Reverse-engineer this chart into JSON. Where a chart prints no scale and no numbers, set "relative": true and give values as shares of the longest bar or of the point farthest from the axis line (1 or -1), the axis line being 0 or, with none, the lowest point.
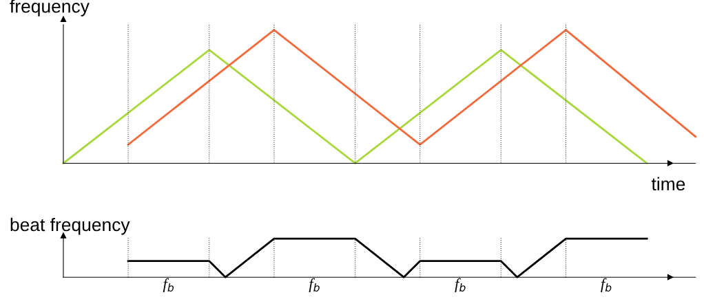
{
  "chart_data": [
    {
      "type": "line",
      "relative": true,
      "ylabel": "frequency",
      "xlabel": "time",
      "line_style": "solid",
      "categories": [
        null,
        null,
        null,
        null,
        null,
        null,
        null,
        null,
        null,
        null,
        null,
        null,
        null,
        null,
        null,
        null,
        null,
        null,
        null,
        null,
        null,
        null,
        null,
        null,
        null,
        null,
        null,
        null,
        null,
        null,
        null,
        null,
        null,
        null,
        null,
        null,
        null,
        null,
        null,
        null
      ],
      "series": [
        {
          "color": "#a8d83c",
          "values": [
            0,
            null,
            null,
            null,
            null,
            null,
            null,
            null,
            null,
            0.85,
            null,
            null,
            null,
            null,
            null,
            null,
            null,
            null,
            0,
            null,
            null,
            null,
            null,
            null,
            null,
            null,
            null,
            0.85,
            null,
            null,
            null,
            null,
            null,
            null,
            null,
            null,
            0,
            null,
            null,
            null
          ]
        },
        {
          "color": "#f26a3c",
          "values": [
            null,
            null,
            null,
            null,
            0.14,
            null,
            null,
            null,
            null,
            null,
            null,
            null,
            null,
            1,
            null,
            null,
            null,
            null,
            null,
            null,
            null,
            null,
            0.14,
            null,
            null,
            null,
            null,
            null,
            null,
            null,
            null,
            1,
            null,
            null,
            null,
            null,
            null,
            null,
            null,
            0.2
          ]
        }
      ],
      "grid": "x"
    },
    {
      "type": "line",
      "relative": true,
      "ylabel": "beat frequency",
      "line_style": "solid",
      "categories": [
        null,
        null,
        null,
        null,
        null,
        null,
        null,
        null,
        null,
        null,
        null,
        null,
        null,
        null,
        null,
        null,
        null,
        null,
        null,
        null,
        null,
        null,
        null,
        null,
        null,
        null,
        null,
        null,
        null,
        null,
        null,
        null,
        null,
        null,
        null,
        null,
        null,
        null,
        null,
        null
      ],
      "series": [
        {
          "color": "#000000",
          "values": [
            null,
            null,
            null,
            null,
            0.42,
            null,
            null,
            null,
            null,
            0.42,
            0,
            null,
            null,
            1,
            null,
            null,
            null,
            null,
            1,
            null,
            null,
            0,
            0.42,
            null,
            null,
            null,
            null,
            0.42,
            0,
            null,
            null,
            1,
            null,
            null,
            null,
            null,
            1,
            null,
            null,
            null
          ]
        }
      ],
      "grid": "x",
      "annotations": [
        "f$_{b}$",
        "f$_{b}$",
        "f$_{b}$",
        "f$_{b}$"
      ]
    }
  ]
}
